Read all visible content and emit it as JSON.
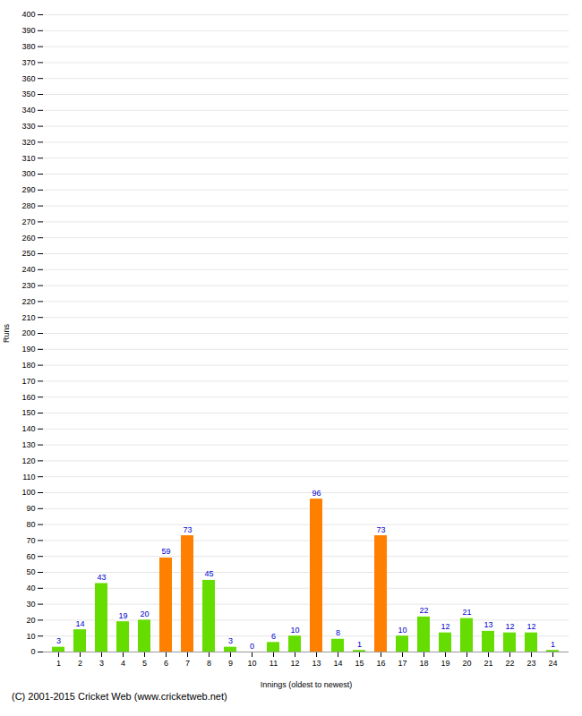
{
  "chart_data": {
    "type": "bar",
    "xlabel": "Innings (oldest to newest)",
    "ylabel": "Runs",
    "annotations": [
      "(C) 2001-2015 Cricket Web (www.cricketweb.net)"
    ],
    "categories": [
      "1",
      "2",
      "3",
      "4",
      "5",
      "6",
      "7",
      "8",
      "9",
      "10",
      "11",
      "12",
      "13",
      "14",
      "15",
      "16",
      "17",
      "18",
      "19",
      "20",
      "21",
      "22",
      "23",
      "24"
    ],
    "values": [
      3,
      14,
      43,
      19,
      20,
      59,
      73,
      45,
      3,
      0,
      6,
      10,
      96,
      8,
      1,
      73,
      10,
      22,
      12,
      21,
      13,
      12,
      12,
      1
    ],
    "colors": [
      "#66dd00",
      "#66dd00",
      "#66dd00",
      "#66dd00",
      "#66dd00",
      "#ff8000",
      "#ff8000",
      "#66dd00",
      "#66dd00",
      "#66dd00",
      "#66dd00",
      "#66dd00",
      "#ff8000",
      "#66dd00",
      "#66dd00",
      "#ff8000",
      "#66dd00",
      "#66dd00",
      "#66dd00",
      "#66dd00",
      "#66dd00",
      "#66dd00",
      "#66dd00",
      "#66dd00"
    ],
    "ylim": [
      0,
      400
    ],
    "yticks": [
      0,
      10,
      20,
      30,
      40,
      50,
      60,
      70,
      80,
      90,
      100,
      110,
      120,
      130,
      140,
      150,
      160,
      170,
      180,
      190,
      200,
      210,
      220,
      230,
      240,
      250,
      260,
      270,
      280,
      290,
      300,
      310,
      320,
      330,
      340,
      350,
      360,
      370,
      380,
      390,
      400
    ],
    "grid": true,
    "data_labels": true
  }
}
